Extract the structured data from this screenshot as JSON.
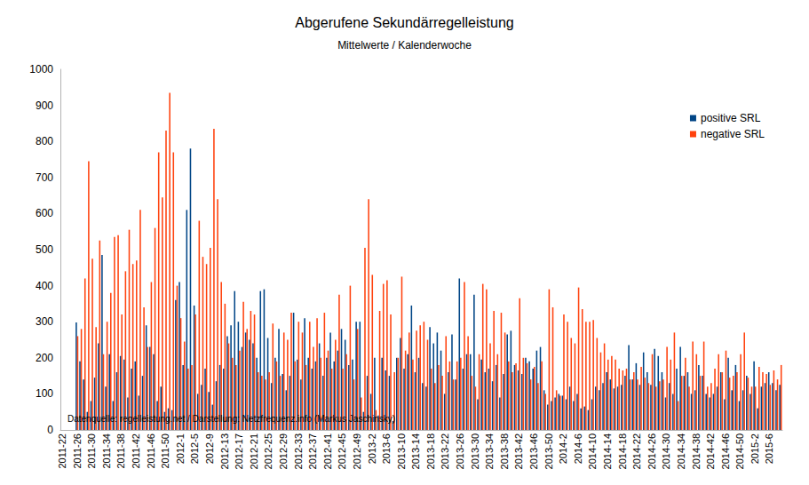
{
  "chart_data": {
    "type": "bar",
    "title": "Abgerufene Sekundärregelleistung",
    "subtitle": "Mittelwerte / Kalenderwoche",
    "annotation": "Datenquelle: regelleistung.net / Darstellung: Netzfrequenz.info (Markus Jaschinsky)",
    "categories": [
      "2011-22",
      null,
      null,
      null,
      "2011-26",
      null,
      null,
      null,
      "2011-30",
      null,
      null,
      null,
      "2011-34",
      null,
      null,
      null,
      "2011-38",
      null,
      null,
      null,
      "2011-42",
      null,
      null,
      null,
      "2011-46",
      null,
      null,
      null,
      "2011-50",
      null,
      null,
      null,
      "2012-1",
      null,
      null,
      null,
      "2012-5",
      null,
      null,
      null,
      "2012-9",
      null,
      null,
      null,
      "2012-13",
      null,
      null,
      null,
      "2012-17",
      null,
      null,
      null,
      "2012-21",
      null,
      null,
      null,
      "2012-25",
      null,
      null,
      null,
      "2012-29",
      null,
      null,
      null,
      "2012-33",
      null,
      null,
      null,
      "2012-37",
      null,
      null,
      null,
      "2012-41",
      null,
      null,
      null,
      "2012-45",
      null,
      null,
      null,
      "2012-49",
      null,
      null,
      null,
      "2013-2",
      null,
      null,
      null,
      "2013-6",
      null,
      null,
      null,
      "2013-10",
      null,
      null,
      null,
      "2013-14",
      null,
      null,
      null,
      "2013-18",
      null,
      null,
      null,
      "2013-22",
      null,
      null,
      null,
      "2013-26",
      null,
      null,
      null,
      "2013-30",
      null,
      null,
      null,
      "2013-34",
      null,
      null,
      null,
      "2013-38",
      null,
      null,
      null,
      "2013-42",
      null,
      null,
      null,
      "2013-46",
      null,
      null,
      null,
      "2013-50",
      null,
      null,
      null,
      "2014-2",
      null,
      null,
      null,
      "2014-6",
      null,
      null,
      null,
      "2014-10",
      null,
      null,
      null,
      "2014-14",
      null,
      null,
      null,
      "2014-18",
      null,
      null,
      null,
      "2014-22",
      null,
      null,
      null,
      "2014-26",
      null,
      null,
      null,
      "2014-30",
      null,
      null,
      null,
      "2014-34",
      null,
      null,
      null,
      "2014-38",
      null,
      null,
      null,
      "2014-42",
      null,
      null,
      null,
      "2014-46",
      null,
      null,
      null,
      "2014-50",
      null,
      null,
      null,
      "2015-2",
      null,
      null,
      null,
      "2015-6",
      null,
      null,
      null
    ],
    "series": [
      {
        "name": "positive SRL",
        "color": "#004586",
        "values": [
          null,
          null,
          null,
          null,
          298,
          190,
          140,
          50,
          80,
          145,
          240,
          485,
          120,
          210,
          80,
          160,
          205,
          195,
          90,
          170,
          190,
          95,
          150,
          290,
          230,
          210,
          80,
          120,
          50,
          60,
          55,
          360,
          410,
          180,
          610,
          780,
          345,
          100,
          125,
          170,
          105,
          70,
          135,
          180,
          170,
          260,
          290,
          385,
          300,
          230,
          270,
          250,
          240,
          200,
          385,
          390,
          255,
          130,
          200,
          280,
          155,
          110,
          150,
          325,
          195,
          140,
          310,
          200,
          170,
          190,
          240,
          150,
          200,
          270,
          190,
          220,
          280,
          250,
          180,
          195,
          300,
          300,
          50,
          150,
          100,
          200,
          40,
          200,
          165,
          150,
          25,
          200,
          255,
          170,
          210,
          345,
          160,
          200,
          130,
          120,
          285,
          240,
          270,
          220,
          100,
          160,
          265,
          140,
          420,
          170,
          210,
          210,
          375,
          85,
          195,
          160,
          170,
          135,
          180,
          90,
          155,
          265,
          275,
          180,
          165,
          155,
          200,
          190,
          170,
          220,
          230,
          110,
          70,
          80,
          90,
          100,
          95,
          85,
          120,
          80,
          100,
          60,
          65,
          55,
          85,
          120,
          110,
          130,
          160,
          140,
          115,
          120,
          125,
          150,
          235,
          140,
          185,
          125,
          215,
          160,
          125,
          225,
          205,
          160,
          90,
          130,
          100,
          170,
          230,
          150,
          160,
          100,
          110,
          180,
          150,
          100,
          90,
          100,
          120,
          160,
          85,
          200,
          110,
          180,
          80,
          110,
          150,
          100,
          190,
          60,
          120,
          130,
          160,
          130,
          110,
          125
        ]
      },
      {
        "name": "negative SRL",
        "color": "#ff420e",
        "values": [
          null,
          null,
          null,
          null,
          260,
          280,
          420,
          745,
          475,
          285,
          525,
          210,
          300,
          380,
          535,
          540,
          320,
          440,
          555,
          460,
          470,
          610,
          340,
          230,
          410,
          560,
          770,
          645,
          830,
          935,
          770,
          400,
          310,
          245,
          170,
          180,
          320,
          580,
          480,
          460,
          505,
          835,
          640,
          410,
          350,
          240,
          200,
          180,
          220,
          355,
          280,
          330,
          320,
          160,
          150,
          140,
          160,
          295,
          190,
          150,
          270,
          250,
          325,
          190,
          300,
          270,
          180,
          300,
          230,
          310,
          200,
          325,
          220,
          170,
          250,
          375,
          170,
          210,
          400,
          140,
          280,
          90,
          505,
          640,
          430,
          55,
          330,
          405,
          415,
          320,
          160,
          200,
          425,
          220,
          270,
          195,
          275,
          290,
          300,
          250,
          170,
          130,
          180,
          150,
          260,
          190,
          140,
          190,
          200,
          410,
          260,
          150,
          120,
          210,
          405,
          390,
          240,
          330,
          210,
          325,
          270,
          190,
          160,
          185,
          365,
          200,
          185,
          140,
          175,
          130,
          190,
          100,
          390,
          340,
          110,
          95,
          320,
          300,
          255,
          240,
          395,
          335,
          300,
          300,
          305,
          255,
          215,
          240,
          195,
          205,
          195,
          170,
          165,
          170,
          140,
          160,
          140,
          175,
          145,
          130,
          210,
          120,
          135,
          140,
          230,
          195,
          270,
          80,
          150,
          200,
          120,
          245,
          210,
          150,
          245,
          120,
          130,
          170,
          210,
          160,
          220,
          145,
          150,
          160,
          210,
          270,
          145,
          120,
          120,
          175,
          160,
          155,
          125,
          165,
          140,
          180
        ]
      }
    ],
    "ylim": [
      0,
      1000
    ],
    "yticks": [
      0,
      100,
      200,
      300,
      400,
      500,
      600,
      700,
      800,
      900,
      1000
    ],
    "grid": false,
    "legend": "top-right"
  }
}
